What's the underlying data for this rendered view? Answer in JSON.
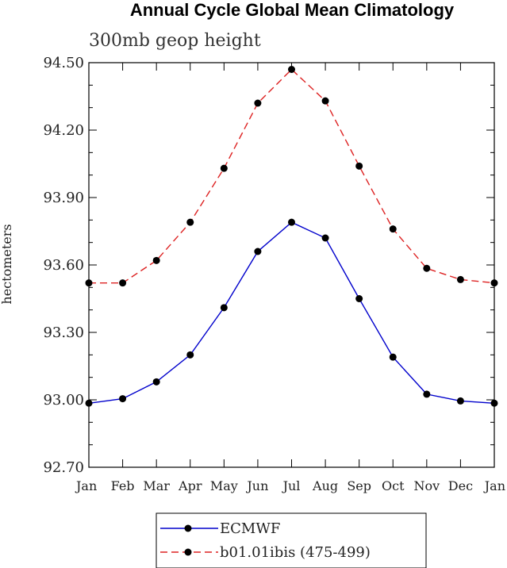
{
  "chart_data": {
    "type": "line",
    "title": "Annual Cycle Global Mean Climatology",
    "subtitle": "300mb geop height",
    "xlabel": "",
    "ylabel": "hectometers",
    "categories": [
      "Jan",
      "Feb",
      "Mar",
      "Apr",
      "May",
      "Jun",
      "Jul",
      "Aug",
      "Sep",
      "Oct",
      "Nov",
      "Dec",
      "Jan"
    ],
    "ylim": [
      92.7,
      94.5
    ],
    "yticks": [
      "92.70",
      "93.00",
      "93.30",
      "93.60",
      "93.90",
      "94.20",
      "94.50"
    ],
    "legend_position": "bottom",
    "series": [
      {
        "name": "ECMWF",
        "color": "#0000cc",
        "line_style": "solid",
        "values": [
          92.985,
          93.005,
          93.08,
          93.2,
          93.41,
          93.66,
          93.79,
          93.72,
          93.45,
          93.19,
          93.025,
          92.995,
          92.985
        ]
      },
      {
        "name": "b01.01ibis (475-499)",
        "color": "#dd2222",
        "line_style": "dashed",
        "values": [
          93.52,
          93.52,
          93.62,
          93.79,
          94.03,
          94.32,
          94.47,
          94.33,
          94.04,
          93.76,
          93.585,
          93.535,
          93.52
        ]
      }
    ]
  }
}
